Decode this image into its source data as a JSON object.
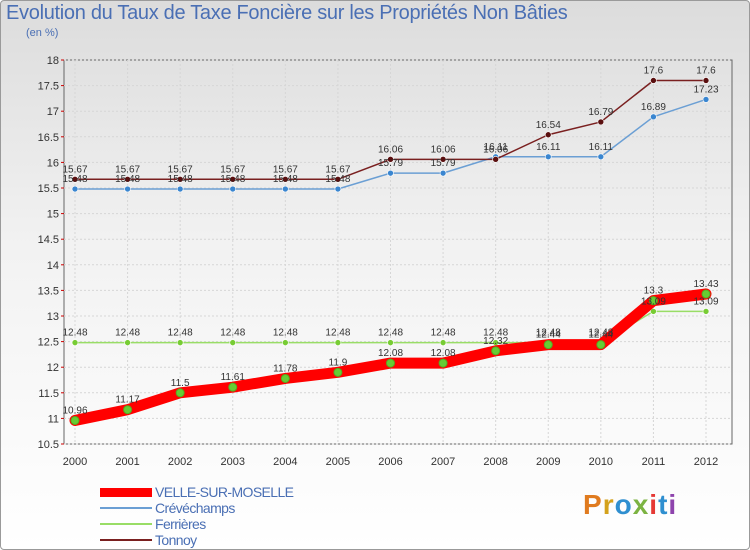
{
  "header": {
    "title": "Evolution du Taux de Taxe Foncière sur les Propriétés Non Bâties",
    "unit": "(en %)"
  },
  "logo": {
    "text": "Proxiti",
    "colors": [
      "#e07b1f",
      "#d4a21c",
      "#2f8fd0",
      "#7cb342",
      "#e53935",
      "#2f8fd0",
      "#8e44ad"
    ]
  },
  "chart_data": {
    "type": "line",
    "title": "Evolution du Taux de Taxe Foncière sur les Propriétés Non Bâties",
    "ylabel": "(en %)",
    "xlabel": "",
    "x": [
      "2000",
      "2001",
      "2002",
      "2003",
      "2004",
      "2005",
      "2006",
      "2007",
      "2008",
      "2009",
      "2010",
      "2011",
      "2012"
    ],
    "ylim": [
      10.5,
      18
    ],
    "yticks": [
      "10.5",
      "11",
      "11.5",
      "12",
      "12.5",
      "13",
      "13.5",
      "14",
      "14.5",
      "15",
      "15.5",
      "16",
      "16.5",
      "17",
      "17.5",
      "18"
    ],
    "grid": true,
    "legend_position": "bottom-left",
    "series": [
      {
        "name": "VELLE-SUR-MOSELLE",
        "color": "#ff0000",
        "marker": "#66cc33",
        "values": [
          10.96,
          11.17,
          11.5,
          11.61,
          11.78,
          11.9,
          12.08,
          12.08,
          12.32,
          12.44,
          12.44,
          13.3,
          13.43
        ],
        "labels": [
          "10.96",
          "11.17",
          "11.5",
          "11.61",
          "11.78",
          "11.9",
          "12.08",
          "12.08",
          "12.32",
          "12.44",
          "12.44",
          "13.3",
          "13.43"
        ]
      },
      {
        "name": "Crévéchamps",
        "color": "#6b9fd4",
        "marker": "#3a86d0",
        "values": [
          15.48,
          15.48,
          15.48,
          15.48,
          15.48,
          15.48,
          15.79,
          15.79,
          16.11,
          16.11,
          16.11,
          16.89,
          17.23
        ],
        "labels": [
          "15.48",
          "15.48",
          "15.48",
          "15.48",
          "15.48",
          "15.48",
          "15.79",
          "15.79",
          "16.11",
          "16.11",
          "16.11",
          "16.89",
          "17.23"
        ]
      },
      {
        "name": "Ferrières",
        "color": "#99dd66",
        "marker": "#77cc33",
        "values": [
          12.48,
          12.48,
          12.48,
          12.48,
          12.48,
          12.48,
          12.48,
          12.48,
          12.48,
          12.48,
          12.48,
          13.09,
          13.09
        ],
        "labels": [
          "12.48",
          "12.48",
          "12.48",
          "12.48",
          "12.48",
          "12.48",
          "12.48",
          "12.48",
          "12.48",
          "12.48",
          "12.48",
          "13.09",
          "13.09"
        ]
      },
      {
        "name": "Tonnoy",
        "color": "#7a2020",
        "marker": "#5a0f0f",
        "values": [
          15.67,
          15.67,
          15.67,
          15.67,
          15.67,
          15.67,
          16.06,
          16.06,
          16.06,
          16.54,
          16.79,
          17.6,
          17.6
        ],
        "labels": [
          "15.67",
          "15.67",
          "15.67",
          "15.67",
          "15.67",
          "15.67",
          "16.06",
          "16.06",
          "16.06",
          "16.54",
          "16.79",
          "17.6",
          "17.6"
        ]
      }
    ]
  }
}
